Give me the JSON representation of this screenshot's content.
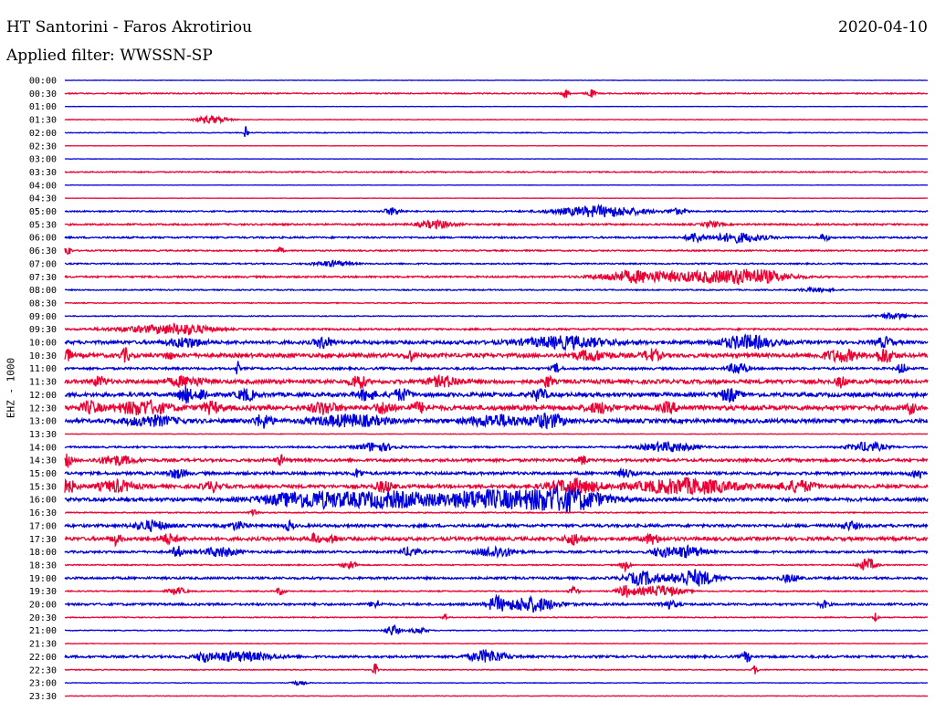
{
  "header": {
    "station": "HT Santorini - Faros Akrotiriou",
    "date": "2020-04-10",
    "filter": "Applied filter: WWSSN-SP",
    "channel": "EHZ - 1000"
  },
  "colors": {
    "odd": "#0000dd",
    "even": "#ee0033"
  },
  "chart_data": {
    "type": "helicorder",
    "title": "HT Santorini - Faros Akrotiriou",
    "subtitle": "Applied filter: WWSSN-SP",
    "date": "2020-04-10",
    "ylabel": "EHZ - 1000",
    "row_minutes": 30,
    "rows": [
      {
        "label": "00:00",
        "color": "blue",
        "noise": 0.3,
        "events": []
      },
      {
        "label": "00:30",
        "color": "red",
        "noise": 1,
        "events": [
          [
            0.58,
            0.004,
            5
          ],
          [
            0.61,
            0.005,
            4
          ]
        ]
      },
      {
        "label": "01:00",
        "color": "blue",
        "noise": 0.3,
        "events": []
      },
      {
        "label": "01:30",
        "color": "red",
        "noise": 0.5,
        "events": [
          [
            0.17,
            0.02,
            4
          ]
        ]
      },
      {
        "label": "02:00",
        "color": "blue",
        "noise": 0.7,
        "events": [
          [
            0.21,
            0.002,
            7
          ]
        ]
      },
      {
        "label": "02:30",
        "color": "red",
        "noise": 0.3,
        "events": []
      },
      {
        "label": "03:00",
        "color": "blue",
        "noise": 0.3,
        "events": []
      },
      {
        "label": "03:30",
        "color": "red",
        "noise": 1,
        "events": []
      },
      {
        "label": "04:00",
        "color": "blue",
        "noise": 0.3,
        "events": []
      },
      {
        "label": "04:30",
        "color": "red",
        "noise": 0.3,
        "events": []
      },
      {
        "label": "05:00",
        "color": "blue",
        "noise": 1.2,
        "events": [
          [
            0.38,
            0.01,
            4
          ],
          [
            0.62,
            0.05,
            6
          ],
          [
            0.71,
            0.01,
            3
          ]
        ]
      },
      {
        "label": "05:30",
        "color": "red",
        "noise": 1.5,
        "events": [
          [
            0.43,
            0.02,
            4
          ],
          [
            0.75,
            0.01,
            3
          ]
        ]
      },
      {
        "label": "06:00",
        "color": "blue",
        "noise": 1.5,
        "events": [
          [
            0.73,
            0.01,
            5
          ],
          [
            0.78,
            0.03,
            5
          ],
          [
            0.88,
            0.005,
            4
          ]
        ]
      },
      {
        "label": "06:30",
        "color": "red",
        "noise": 1.2,
        "events": [
          [
            0.003,
            0.004,
            6
          ],
          [
            0.25,
            0.003,
            4
          ]
        ]
      },
      {
        "label": "07:00",
        "color": "blue",
        "noise": 1.2,
        "events": [
          [
            0.31,
            0.02,
            3
          ]
        ]
      },
      {
        "label": "07:30",
        "color": "red",
        "noise": 1.5,
        "events": [
          [
            0.66,
            0.04,
            6
          ],
          [
            0.74,
            0.05,
            5
          ],
          [
            0.8,
            0.04,
            7
          ]
        ]
      },
      {
        "label": "08:00",
        "color": "blue",
        "noise": 1,
        "events": [
          [
            0.87,
            0.02,
            2
          ]
        ]
      },
      {
        "label": "08:30",
        "color": "red",
        "noise": 0.8,
        "events": []
      },
      {
        "label": "09:00",
        "color": "blue",
        "noise": 0.8,
        "events": [
          [
            0.96,
            0.02,
            3
          ]
        ]
      },
      {
        "label": "09:30",
        "color": "red",
        "noise": 1.5,
        "events": [
          [
            0.1,
            0.05,
            3
          ],
          [
            0.14,
            0.03,
            4
          ]
        ]
      },
      {
        "label": "10:00",
        "color": "blue",
        "noise": 3,
        "events": [
          [
            0.14,
            0.02,
            5
          ],
          [
            0.3,
            0.01,
            6
          ],
          [
            0.58,
            0.05,
            6
          ],
          [
            0.79,
            0.03,
            7
          ],
          [
            0.95,
            0.01,
            5
          ]
        ]
      },
      {
        "label": "10:30",
        "color": "red",
        "noise": 3.5,
        "events": [
          [
            0.003,
            0.005,
            6
          ],
          [
            0.07,
            0.005,
            7
          ],
          [
            0.12,
            0.004,
            5
          ],
          [
            0.4,
            0.005,
            6
          ],
          [
            0.61,
            0.02,
            5
          ],
          [
            0.68,
            0.01,
            6
          ],
          [
            0.9,
            0.02,
            6
          ],
          [
            0.95,
            0.01,
            8
          ]
        ]
      },
      {
        "label": "11:00",
        "color": "blue",
        "noise": 2,
        "events": [
          [
            0.2,
            0.002,
            8
          ],
          [
            0.57,
            0.005,
            5
          ],
          [
            0.78,
            0.01,
            7
          ],
          [
            0.97,
            0.005,
            6
          ]
        ]
      },
      {
        "label": "11:30",
        "color": "red",
        "noise": 3.5,
        "events": [
          [
            0.04,
            0.008,
            5
          ],
          [
            0.14,
            0.02,
            5
          ],
          [
            0.34,
            0.008,
            8
          ],
          [
            0.44,
            0.02,
            5
          ],
          [
            0.56,
            0.005,
            6
          ],
          [
            0.9,
            0.005,
            6
          ]
        ]
      },
      {
        "label": "12:00",
        "color": "blue",
        "noise": 3.5,
        "events": [
          [
            0.14,
            0.008,
            8
          ],
          [
            0.16,
            0.005,
            7
          ],
          [
            0.21,
            0.01,
            6
          ],
          [
            0.35,
            0.01,
            6
          ],
          [
            0.39,
            0.01,
            6
          ],
          [
            0.55,
            0.008,
            7
          ],
          [
            0.77,
            0.01,
            7
          ]
        ]
      },
      {
        "label": "12:30",
        "color": "red",
        "noise": 4,
        "events": [
          [
            0.03,
            0.01,
            6
          ],
          [
            0.09,
            0.03,
            7
          ],
          [
            0.17,
            0.01,
            6
          ],
          [
            0.3,
            0.015,
            6
          ],
          [
            0.37,
            0.01,
            6
          ],
          [
            0.41,
            0.01,
            5
          ],
          [
            0.62,
            0.015,
            5
          ],
          [
            0.7,
            0.01,
            5
          ],
          [
            0.98,
            0.005,
            6
          ]
        ]
      },
      {
        "label": "13:00",
        "color": "blue",
        "noise": 3.5,
        "events": [
          [
            0.1,
            0.03,
            5
          ],
          [
            0.23,
            0.01,
            7
          ],
          [
            0.33,
            0.04,
            6
          ],
          [
            0.5,
            0.03,
            6
          ],
          [
            0.56,
            0.02,
            7
          ]
        ]
      },
      {
        "label": "13:30",
        "color": "red",
        "noise": 0.5,
        "events": []
      },
      {
        "label": "14:00",
        "color": "blue",
        "noise": 1.5,
        "events": [
          [
            0.36,
            0.02,
            5
          ],
          [
            0.7,
            0.03,
            5
          ],
          [
            0.93,
            0.02,
            5
          ]
        ]
      },
      {
        "label": "14:30",
        "color": "red",
        "noise": 2.5,
        "events": [
          [
            0.003,
            0.005,
            6
          ],
          [
            0.06,
            0.02,
            5
          ],
          [
            0.25,
            0.005,
            5
          ],
          [
            0.6,
            0.005,
            5
          ]
        ]
      },
      {
        "label": "15:00",
        "color": "blue",
        "noise": 2.5,
        "events": [
          [
            0.13,
            0.01,
            5
          ],
          [
            0.34,
            0.005,
            5
          ],
          [
            0.65,
            0.01,
            4
          ],
          [
            0.99,
            0.01,
            5
          ]
        ]
      },
      {
        "label": "15:30",
        "color": "red",
        "noise": 3,
        "events": [
          [
            0.003,
            0.01,
            7
          ],
          [
            0.06,
            0.02,
            6
          ],
          [
            0.17,
            0.01,
            5
          ],
          [
            0.37,
            0.01,
            6
          ],
          [
            0.59,
            0.03,
            7
          ],
          [
            0.72,
            0.06,
            8
          ],
          [
            0.85,
            0.02,
            6
          ]
        ]
      },
      {
        "label": "16:00",
        "color": "blue",
        "noise": 3,
        "events": [
          [
            0.28,
            0.05,
            8
          ],
          [
            0.38,
            0.06,
            8
          ],
          [
            0.48,
            0.04,
            8
          ],
          [
            0.55,
            0.05,
            8
          ],
          [
            0.59,
            0.04,
            8
          ]
        ]
      },
      {
        "label": "16:30",
        "color": "red",
        "noise": 1,
        "events": [
          [
            0.22,
            0.005,
            4
          ]
        ]
      },
      {
        "label": "17:00",
        "color": "blue",
        "noise": 2.5,
        "events": [
          [
            0.1,
            0.02,
            5
          ],
          [
            0.2,
            0.01,
            4
          ],
          [
            0.26,
            0.005,
            5
          ],
          [
            0.91,
            0.01,
            4
          ]
        ]
      },
      {
        "label": "17:30",
        "color": "red",
        "noise": 3,
        "events": [
          [
            0.06,
            0.005,
            6
          ],
          [
            0.12,
            0.01,
            5
          ],
          [
            0.29,
            0.005,
            6
          ],
          [
            0.31,
            0.005,
            5
          ],
          [
            0.59,
            0.01,
            6
          ],
          [
            0.68,
            0.01,
            5
          ]
        ]
      },
      {
        "label": "18:00",
        "color": "blue",
        "noise": 2,
        "events": [
          [
            0.13,
            0.005,
            7
          ],
          [
            0.18,
            0.02,
            5
          ],
          [
            0.4,
            0.01,
            5
          ],
          [
            0.5,
            0.02,
            6
          ],
          [
            0.69,
            0.01,
            5
          ],
          [
            0.72,
            0.02,
            6
          ]
        ]
      },
      {
        "label": "18:30",
        "color": "red",
        "noise": 1,
        "events": [
          [
            0.33,
            0.008,
            5
          ],
          [
            0.65,
            0.005,
            6
          ],
          [
            0.93,
            0.01,
            7
          ]
        ]
      },
      {
        "label": "19:00",
        "color": "blue",
        "noise": 2,
        "events": [
          [
            0.67,
            0.02,
            7
          ],
          [
            0.72,
            0.02,
            6
          ],
          [
            0.74,
            0.02,
            5
          ],
          [
            0.84,
            0.01,
            4
          ]
        ]
      },
      {
        "label": "19:30",
        "color": "red",
        "noise": 1,
        "events": [
          [
            0.13,
            0.01,
            4
          ],
          [
            0.25,
            0.005,
            4
          ],
          [
            0.59,
            0.005,
            5
          ],
          [
            0.65,
            0.01,
            6
          ],
          [
            0.69,
            0.025,
            6
          ]
        ]
      },
      {
        "label": "20:00",
        "color": "blue",
        "noise": 2,
        "events": [
          [
            0.36,
            0.005,
            5
          ],
          [
            0.5,
            0.01,
            7
          ],
          [
            0.54,
            0.03,
            8
          ],
          [
            0.7,
            0.01,
            4
          ],
          [
            0.88,
            0.005,
            4
          ]
        ]
      },
      {
        "label": "20:30",
        "color": "red",
        "noise": 0.8,
        "events": [
          [
            0.44,
            0.003,
            4
          ],
          [
            0.94,
            0.003,
            6
          ]
        ]
      },
      {
        "label": "21:00",
        "color": "blue",
        "noise": 0.8,
        "events": [
          [
            0.38,
            0.008,
            6
          ],
          [
            0.41,
            0.01,
            3
          ]
        ]
      },
      {
        "label": "21:30",
        "color": "red",
        "noise": 0.5,
        "events": []
      },
      {
        "label": "22:00",
        "color": "blue",
        "noise": 2,
        "events": [
          [
            0.16,
            0.005,
            6
          ],
          [
            0.2,
            0.04,
            5
          ],
          [
            0.49,
            0.02,
            7
          ],
          [
            0.79,
            0.005,
            6
          ]
        ]
      },
      {
        "label": "22:30",
        "color": "red",
        "noise": 0.8,
        "events": [
          [
            0.36,
            0.003,
            7
          ],
          [
            0.8,
            0.003,
            5
          ]
        ]
      },
      {
        "label": "23:00",
        "color": "blue",
        "noise": 0.5,
        "events": [
          [
            0.27,
            0.01,
            2
          ]
        ]
      },
      {
        "label": "23:30",
        "color": "red",
        "noise": 0.5,
        "events": []
      }
    ]
  }
}
